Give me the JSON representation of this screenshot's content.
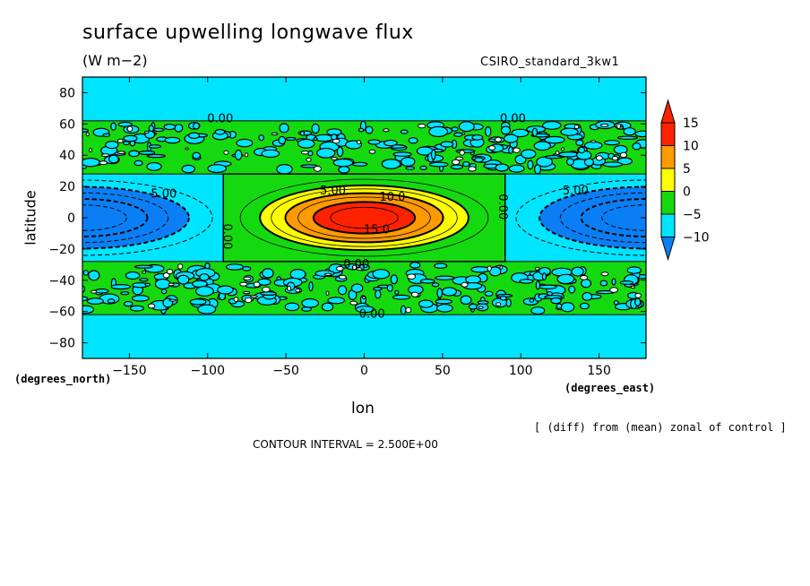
{
  "header": {
    "title": "surface upwelling longwave flux",
    "units": "(W m−2)",
    "dataset": "CSIRO_standard_3kw1",
    "y_units": "(degrees_north)",
    "x_units": "(degrees_east)",
    "diff_note": "[ (diff) from (mean) zonal of control ]",
    "contour_interval": "CONTOUR INTERVAL = 2.500E+00"
  },
  "chart_data": {
    "type": "heatmap",
    "title": "surface upwelling longwave flux",
    "subtitle": "(W m-2)",
    "xlabel": "lon",
    "ylabel": "latitude",
    "xlim": [
      -180,
      180
    ],
    "ylim": [
      -90,
      90
    ],
    "x_ticks": [
      -150,
      -100,
      -50,
      0,
      50,
      100,
      150
    ],
    "x_tick_labels": [
      "−150",
      "−100",
      "−50",
      "0",
      "50",
      "100",
      "150"
    ],
    "y_ticks": [
      80,
      60,
      40,
      20,
      0,
      -20,
      -40,
      -60,
      -80
    ],
    "y_tick_labels": [
      "80",
      "60",
      "40",
      "20",
      "0",
      "−20",
      "−40",
      "−60",
      "−80"
    ],
    "colorbar": {
      "levels": [
        -10,
        -5,
        0,
        5,
        10,
        15
      ],
      "labels": [
        "−10",
        "−5",
        "0",
        "5",
        "10",
        "15"
      ],
      "colors": [
        "#0a7ff5",
        "#00e5ff",
        "#15d90f",
        "#ffff00",
        "#ff9a00",
        "#ff2200"
      ],
      "extend": "both"
    },
    "contour_labels": [
      "0.00",
      "0.00",
      "5.00",
      "10.0",
      "15.0",
      "0.00",
      "0.00",
      "5.00",
      "5.00",
      "0.00",
      "0.00",
      "0.00",
      "0.00"
    ],
    "field": {
      "warm_anomaly": {
        "lon_center": 0,
        "lat_center": 0,
        "lon_extent": [
          -90,
          90
        ],
        "lat_extent": [
          -28,
          28
        ],
        "peak": 17.5
      },
      "cold_anomaly_west": {
        "lon_center": -180,
        "lat_center": 0,
        "peak": -12.5
      },
      "cold_anomaly_east": {
        "lon_center": 180,
        "lat_center": 0,
        "peak": -12.5
      },
      "noise_bands_lat": [
        [
          28,
          62
        ],
        [
          -62,
          -28
        ]
      ],
      "background_value": -2.5
    },
    "grid": false
  },
  "colors": {
    "cyan": "#00e5ff",
    "blue": "#0a7ff5",
    "green": "#15d90f",
    "yellow": "#ffff00",
    "orange": "#ff9a00",
    "red": "#ff2200"
  }
}
